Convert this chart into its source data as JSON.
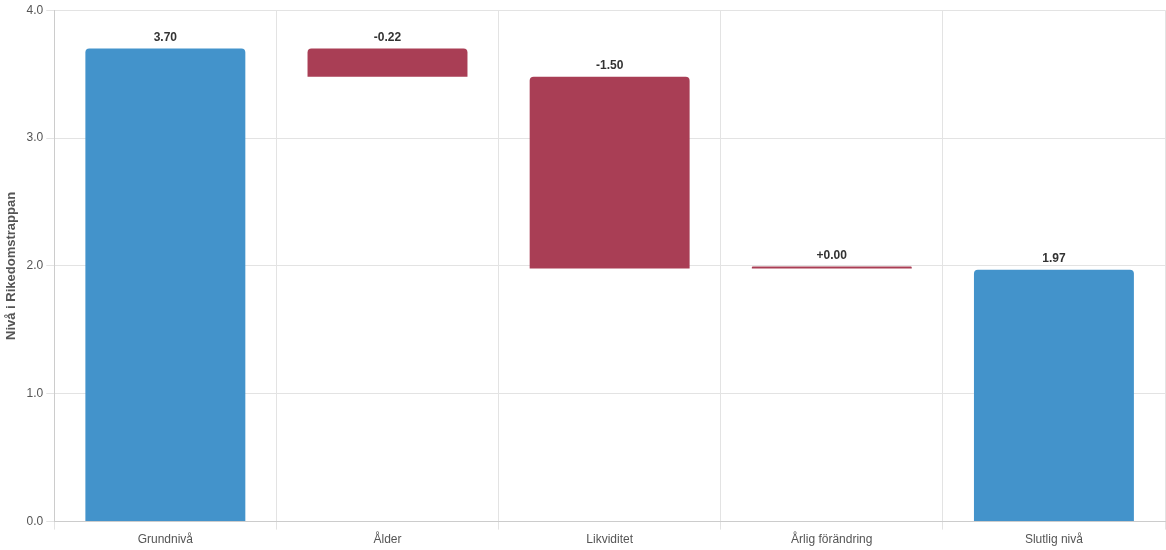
{
  "chart_data": {
    "type": "bar",
    "categories": [
      "Grundnivå",
      "Ålder",
      "Likviditet",
      "Årlig förändring",
      "Slutlig nivå"
    ],
    "values": [
      3.7,
      -0.22,
      -1.5,
      0,
      1.97
    ],
    "base": [
      0,
      3.7,
      3.48,
      1.98,
      0
    ],
    "colors": [
      "#4393cb",
      "#a93e55",
      "#a93e55",
      "#a93e55",
      "#4393cb"
    ],
    "value_labels": [
      "3.70",
      "-0.22",
      "-1.50",
      "+0.00",
      "1.97"
    ],
    "ylabel": "Nivå i Rikedomstrappan",
    "ylim": [
      0,
      4
    ],
    "yticks": [
      {
        "value": 0,
        "label": "0.0"
      },
      {
        "value": 1,
        "label": "1.0"
      },
      {
        "value": 2,
        "label": "2.0"
      },
      {
        "value": 3,
        "label": "3.0"
      },
      {
        "value": 4,
        "label": "4.0"
      }
    ],
    "grid": true
  }
}
